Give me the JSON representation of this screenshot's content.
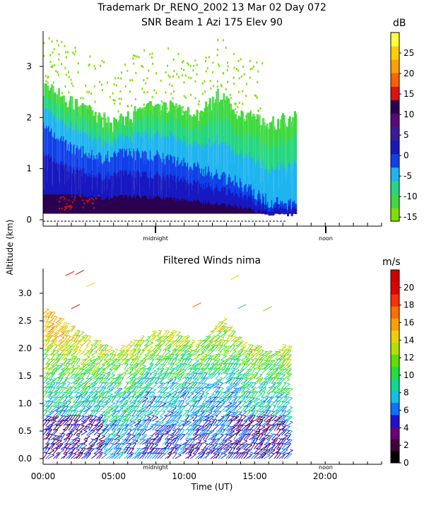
{
  "header": {
    "line1": "Trademark Dr_RENO_2002  13 Mar 02 Day 072",
    "line2": "SNR Beam 1 Azi 175 Elev 90"
  },
  "y_axis_label": "Altitude (km)",
  "x_axis_label": "Time (UT)",
  "midnight_label": "midnight",
  "noon_label": "noon",
  "chart_data": [
    {
      "type": "heatmap",
      "title": "SNR Beam 1 Azi 175 Elev 90",
      "ylabel": "Altitude (km)",
      "xlim": [
        0,
        24
      ],
      "ylim": [
        0,
        3.7
      ],
      "x_ticks": [],
      "y_ticks": [
        0,
        1,
        2,
        3
      ],
      "colorbar": {
        "unit": "dB",
        "ticks": [
          -15,
          -10,
          -5,
          0,
          5,
          10,
          15,
          20,
          25
        ],
        "colors": [
          "#7ee000",
          "#3ed940",
          "#27d680",
          "#1fb4f0",
          "#1040e8",
          "#1818c0",
          "#3a1a9a",
          "#5a0a78",
          "#2a0050",
          "#e01010",
          "#ff6000",
          "#ffa000",
          "#ffd000",
          "#ffff40"
        ]
      },
      "data_extent": {
        "x": [
          0,
          17.9
        ],
        "y": [
          0.12,
          3.5
        ]
      },
      "top_profile": [
        {
          "x": 0,
          "y": 2.6
        },
        {
          "x": 1.5,
          "y": 2.35
        },
        {
          "x": 3,
          "y": 2.1
        },
        {
          "x": 5,
          "y": 1.85
        },
        {
          "x": 7,
          "y": 2.15
        },
        {
          "x": 9,
          "y": 2.2
        },
        {
          "x": 11,
          "y": 2.0
        },
        {
          "x": 12.5,
          "y": 2.45
        },
        {
          "x": 14,
          "y": 2.0
        },
        {
          "x": 16,
          "y": 1.85
        },
        {
          "x": 17.9,
          "y": 2.0
        }
      ],
      "core_profile": [
        {
          "x": 0,
          "y": 1.8
        },
        {
          "x": 2,
          "y": 1.4
        },
        {
          "x": 4,
          "y": 1.2
        },
        {
          "x": 6,
          "y": 1.3
        },
        {
          "x": 8,
          "y": 1.25
        },
        {
          "x": 10,
          "y": 1.1
        },
        {
          "x": 12,
          "y": 0.9
        },
        {
          "x": 14,
          "y": 0.7
        },
        {
          "x": 16,
          "y": 0.35
        },
        {
          "x": 17.9,
          "y": 0.3
        }
      ]
    },
    {
      "type": "scatter",
      "title": "Filtered Winds nima",
      "xlabel": "Time (UT)",
      "xlim": [
        0,
        24
      ],
      "ylim": [
        0,
        3.45
      ],
      "x_ticks": [
        "00:00",
        "05:00",
        "10:00",
        "15:00",
        "20:00"
      ],
      "x_tick_values": [
        0,
        5,
        10,
        15,
        20
      ],
      "y_ticks": [
        "0.0",
        "0.5",
        "1.0",
        "1.5",
        "2.0",
        "2.5",
        "3.0"
      ],
      "y_tick_values": [
        0,
        0.5,
        1.0,
        1.5,
        2.0,
        2.5,
        3.0
      ],
      "colorbar": {
        "unit": "m/s",
        "ticks": [
          0,
          2,
          4,
          6,
          8,
          10,
          12,
          14,
          16,
          18,
          20
        ],
        "colors": [
          "#000000",
          "#400040",
          "#6a007a",
          "#2010d0",
          "#1070ff",
          "#10c0e8",
          "#10d890",
          "#20e040",
          "#60e000",
          "#b0e000",
          "#f0d000",
          "#ffa000",
          "#ff7000",
          "#ff3000",
          "#e00000",
          "#d00000"
        ]
      },
      "data_extent": {
        "x": [
          0,
          17.3
        ],
        "y": [
          0,
          3.4
        ]
      },
      "speed_profile": [
        {
          "alt": 0.25,
          "speed": 6
        },
        {
          "alt": 0.75,
          "speed": 8
        },
        {
          "alt": 1.25,
          "speed": 9
        },
        {
          "alt": 1.75,
          "speed": 12
        },
        {
          "alt": 2.25,
          "speed": 15
        },
        {
          "alt": 2.75,
          "speed": 17
        },
        {
          "alt": 3.25,
          "speed": 19
        }
      ]
    }
  ]
}
